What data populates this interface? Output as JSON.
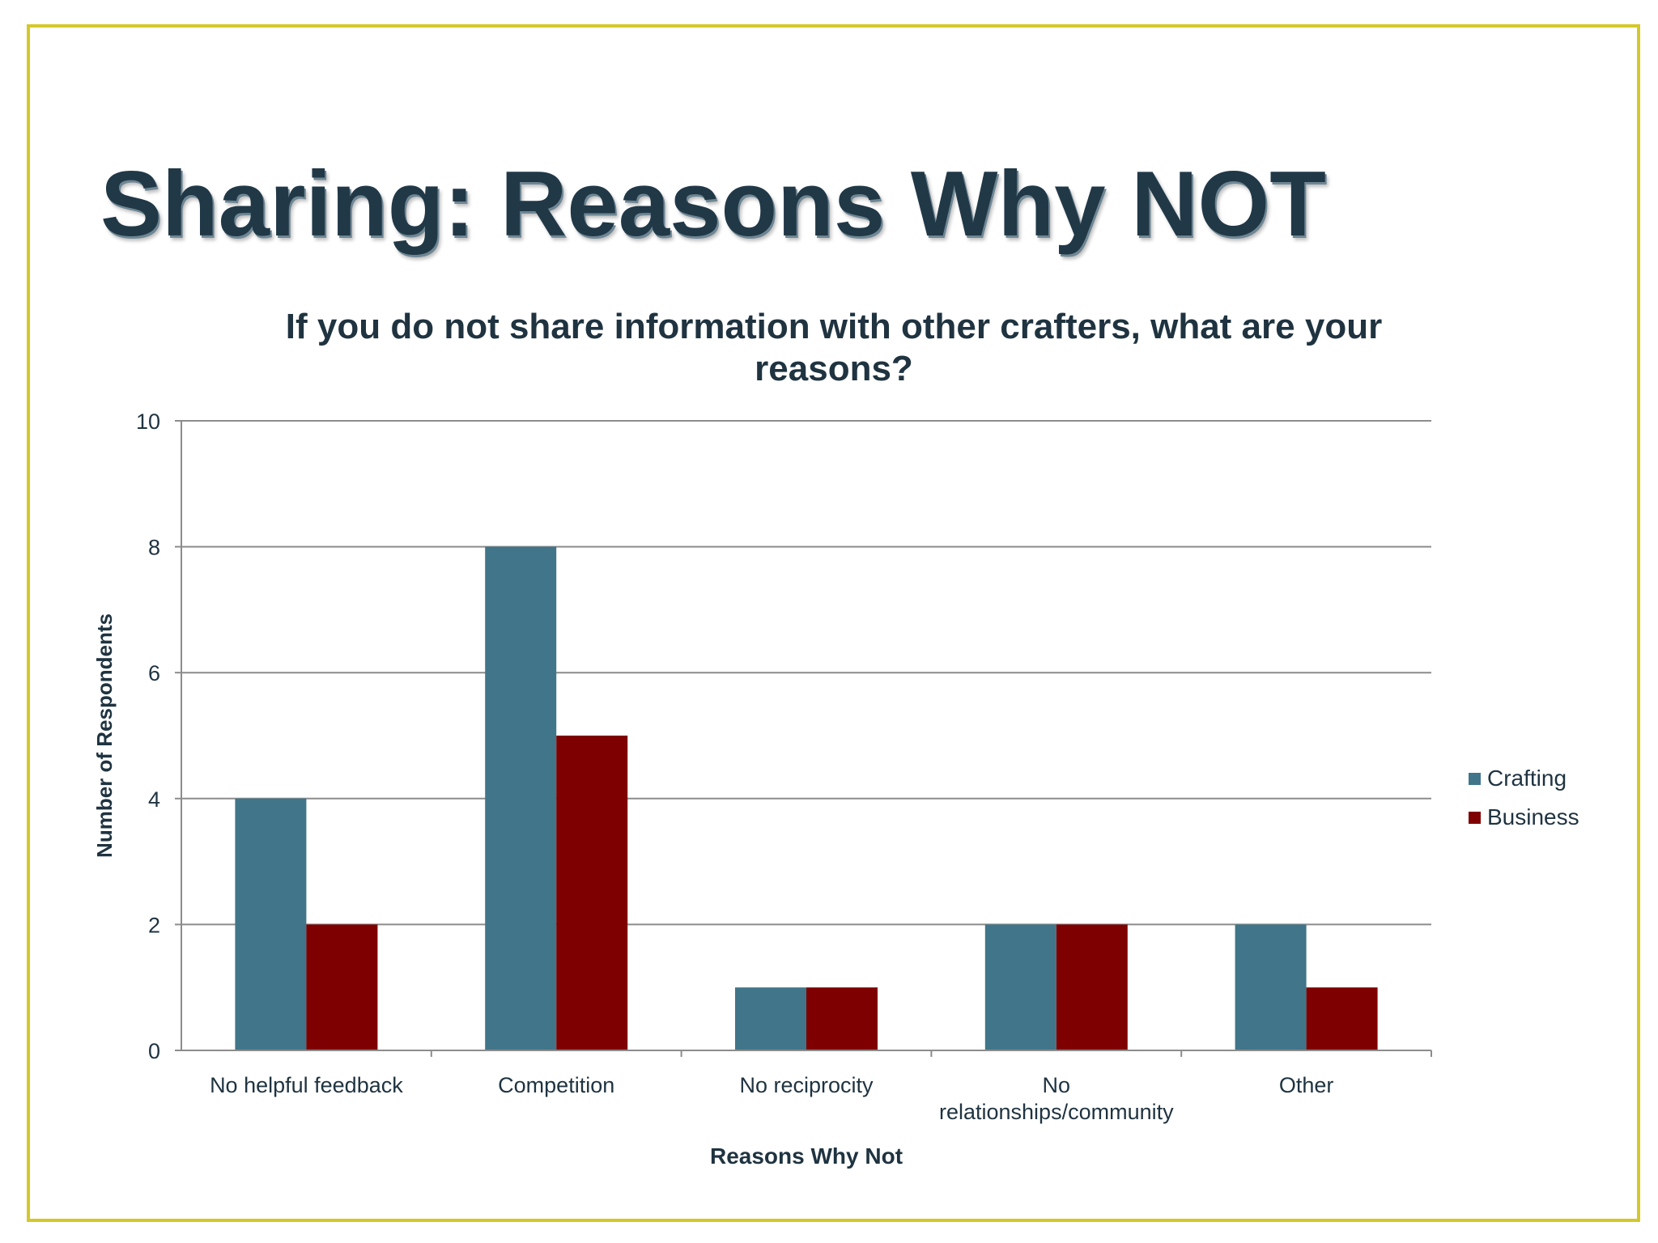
{
  "slide": {
    "title": "Sharing: Reasons Why NOT"
  },
  "colors": {
    "frame": "#d4c82a",
    "title": "#213847",
    "crafting": "#417589",
    "business": "#7f0000",
    "grid": "#8c8c8c"
  },
  "chart_data": {
    "type": "bar",
    "title": "If you do not share information with other crafters, what are your reasons?",
    "xlabel": "Reasons Why Not",
    "ylabel": "Number of Respondents",
    "ylim": [
      0,
      10
    ],
    "yticks": [
      0,
      2,
      4,
      6,
      8,
      10
    ],
    "grid": true,
    "legend_position": "right",
    "categories": [
      [
        "No helpful feedback"
      ],
      [
        "Competition"
      ],
      [
        "No reciprocity"
      ],
      [
        "No",
        "relationships/community"
      ],
      [
        "Other"
      ]
    ],
    "series": [
      {
        "name": "Crafting",
        "color": "#417589",
        "values": [
          4,
          8,
          1,
          2,
          2
        ]
      },
      {
        "name": "Business",
        "color": "#7f0000",
        "values": [
          2,
          5,
          1,
          2,
          1
        ]
      }
    ]
  }
}
